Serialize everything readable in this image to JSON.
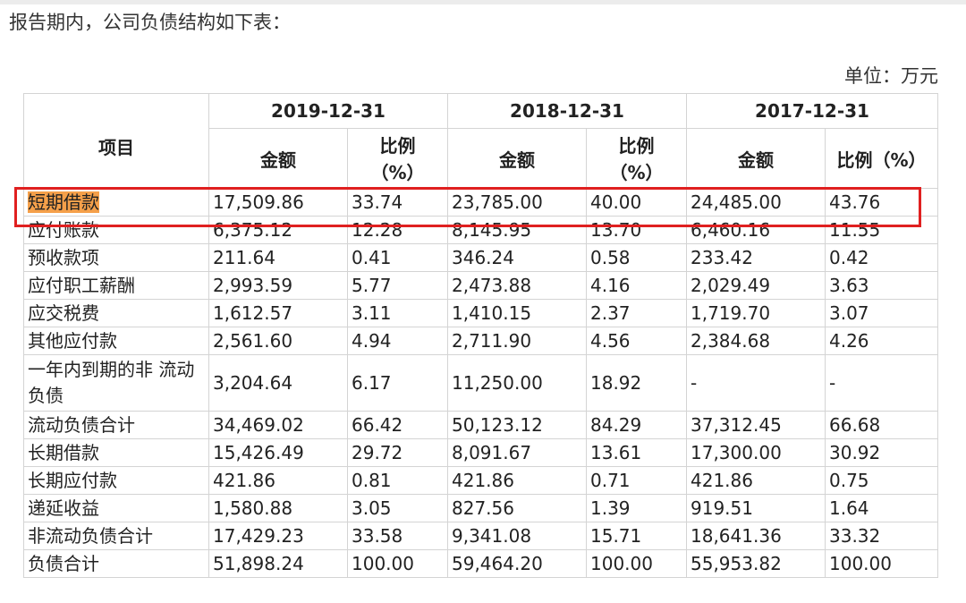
{
  "intro_text": "报告期内，公司负债结构如下表：",
  "unit_text": "单位：万元",
  "highlight_color": "#f5a04a",
  "box_color": "#e02020",
  "table": {
    "item_header": "项目",
    "years": [
      "2019-12-31",
      "2018-12-31",
      "2017-12-31"
    ],
    "amount_header": "金额",
    "pct_header_line1": "比例",
    "pct_header_line2": "（%）",
    "pct_header_full": "比例（%）",
    "rows": [
      {
        "name": "短期借款",
        "v": [
          "17,509.86",
          "33.74",
          "23,785.00",
          "40.00",
          "24,485.00",
          "43.76"
        ]
      },
      {
        "name": "应付账款",
        "v": [
          "6,375.12",
          "12.28",
          "8,145.95",
          "13.70",
          "6,460.16",
          "11.55"
        ]
      },
      {
        "name": "预收款项",
        "v": [
          "211.64",
          "0.41",
          "346.24",
          "0.58",
          "233.42",
          "0.42"
        ]
      },
      {
        "name": "应付职工薪酬",
        "v": [
          "2,993.59",
          "5.77",
          "2,473.88",
          "4.16",
          "2,029.49",
          "3.63"
        ]
      },
      {
        "name": "应交税费",
        "v": [
          "1,612.57",
          "3.11",
          "1,410.15",
          "2.37",
          "1,719.70",
          "3.07"
        ]
      },
      {
        "name": "其他应付款",
        "v": [
          "2,561.60",
          "4.94",
          "2,711.90",
          "4.56",
          "2,384.68",
          "4.26"
        ]
      },
      {
        "name": "一年内到期的非 流动负债",
        "v": [
          "3,204.64",
          "6.17",
          "11,250.00",
          "18.92",
          "-",
          "-"
        ]
      },
      {
        "name": "流动负债合计",
        "v": [
          "34,469.02",
          "66.42",
          "50,123.12",
          "84.29",
          "37,312.45",
          "66.68"
        ]
      },
      {
        "name": "长期借款",
        "v": [
          "15,426.49",
          "29.72",
          "8,091.67",
          "13.61",
          "17,300.00",
          "30.92"
        ]
      },
      {
        "name": "长期应付款",
        "v": [
          "421.86",
          "0.81",
          "421.86",
          "0.71",
          "421.86",
          "0.75"
        ]
      },
      {
        "name": "递延收益",
        "v": [
          "1,580.88",
          "3.05",
          "827.56",
          "1.39",
          "919.51",
          "1.64"
        ]
      },
      {
        "name": "非流动负债合计",
        "v": [
          "17,429.23",
          "33.58",
          "9,341.08",
          "15.71",
          "18,641.36",
          "33.32"
        ]
      },
      {
        "name": "负债合计",
        "v": [
          "51,898.24",
          "100.00",
          "59,464.20",
          "100.00",
          "55,953.82",
          "100.00"
        ]
      }
    ]
  }
}
